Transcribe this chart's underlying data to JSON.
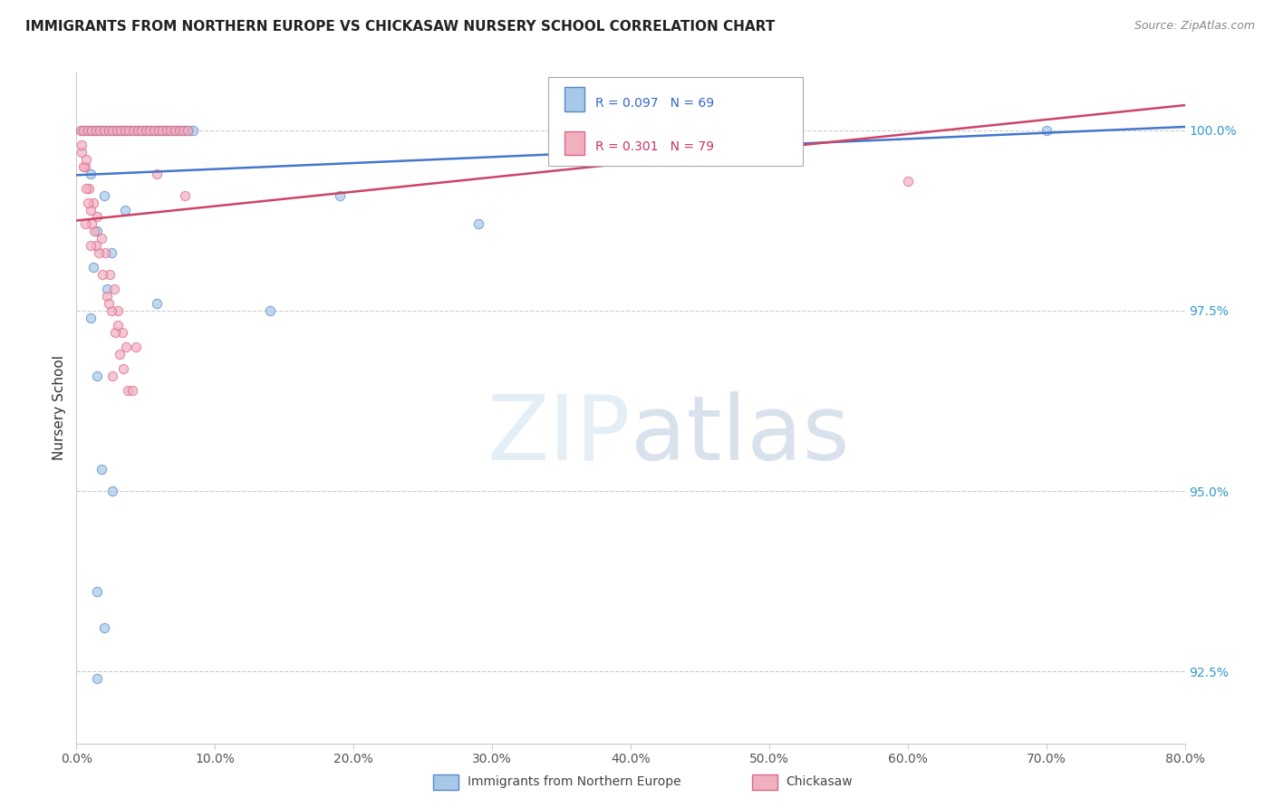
{
  "title": "IMMIGRANTS FROM NORTHERN EUROPE VS CHICKASAW NURSERY SCHOOL CORRELATION CHART",
  "source": "Source: ZipAtlas.com",
  "ylabel": "Nursery School",
  "legend_blue_label": "Immigrants from Northern Europe",
  "legend_pink_label": "Chickasaw",
  "watermark_zip": "ZIP",
  "watermark_atlas": "atlas",
  "blue_color": "#a8c8e8",
  "blue_edge_color": "#5588cc",
  "pink_color": "#f0b0c0",
  "pink_edge_color": "#dd6688",
  "blue_line_color": "#4477cc",
  "pink_line_color": "#cc4466",
  "blue_scatter": [
    [
      0.4,
      100.0
    ],
    [
      0.7,
      100.0
    ],
    [
      1.0,
      100.0
    ],
    [
      1.3,
      100.0
    ],
    [
      1.6,
      100.0
    ],
    [
      1.9,
      100.0
    ],
    [
      2.1,
      100.0
    ],
    [
      2.4,
      100.0
    ],
    [
      2.7,
      100.0
    ],
    [
      3.0,
      100.0
    ],
    [
      3.3,
      100.0
    ],
    [
      3.6,
      100.0
    ],
    [
      3.9,
      100.0
    ],
    [
      4.2,
      100.0
    ],
    [
      4.5,
      100.0
    ],
    [
      4.8,
      100.0
    ],
    [
      5.1,
      100.0
    ],
    [
      5.4,
      100.0
    ],
    [
      5.7,
      100.0
    ],
    [
      6.0,
      100.0
    ],
    [
      6.3,
      100.0
    ],
    [
      6.6,
      100.0
    ],
    [
      6.9,
      100.0
    ],
    [
      7.2,
      100.0
    ],
    [
      7.5,
      100.0
    ],
    [
      7.8,
      100.0
    ],
    [
      8.1,
      100.0
    ],
    [
      8.4,
      100.0
    ],
    [
      19.0,
      99.1
    ],
    [
      29.0,
      98.7
    ],
    [
      70.0,
      100.0
    ],
    [
      1.0,
      99.4
    ],
    [
      2.0,
      99.1
    ],
    [
      3.5,
      98.9
    ],
    [
      1.5,
      98.6
    ],
    [
      2.5,
      98.3
    ],
    [
      1.2,
      98.1
    ],
    [
      2.2,
      97.8
    ],
    [
      5.8,
      97.6
    ],
    [
      1.0,
      97.4
    ],
    [
      14.0,
      97.5
    ],
    [
      1.5,
      96.6
    ],
    [
      1.8,
      95.3
    ],
    [
      2.6,
      95.0
    ],
    [
      1.5,
      93.6
    ],
    [
      2.0,
      93.1
    ],
    [
      1.5,
      92.4
    ]
  ],
  "pink_scatter": [
    [
      0.3,
      100.0
    ],
    [
      0.5,
      100.0
    ],
    [
      0.8,
      100.0
    ],
    [
      1.1,
      100.0
    ],
    [
      1.4,
      100.0
    ],
    [
      1.7,
      100.0
    ],
    [
      2.0,
      100.0
    ],
    [
      2.3,
      100.0
    ],
    [
      2.6,
      100.0
    ],
    [
      2.9,
      100.0
    ],
    [
      3.2,
      100.0
    ],
    [
      3.5,
      100.0
    ],
    [
      3.8,
      100.0
    ],
    [
      4.1,
      100.0
    ],
    [
      4.4,
      100.0
    ],
    [
      4.7,
      100.0
    ],
    [
      5.0,
      100.0
    ],
    [
      5.3,
      100.0
    ],
    [
      5.6,
      100.0
    ],
    [
      5.9,
      100.0
    ],
    [
      6.2,
      100.0
    ],
    [
      6.5,
      100.0
    ],
    [
      6.8,
      100.0
    ],
    [
      7.1,
      100.0
    ],
    [
      7.4,
      100.0
    ],
    [
      7.7,
      100.0
    ],
    [
      8.0,
      100.0
    ],
    [
      0.4,
      99.7
    ],
    [
      0.6,
      99.5
    ],
    [
      0.9,
      99.2
    ],
    [
      1.2,
      99.0
    ],
    [
      1.5,
      98.8
    ],
    [
      1.8,
      98.5
    ],
    [
      2.1,
      98.3
    ],
    [
      2.4,
      98.0
    ],
    [
      2.7,
      97.8
    ],
    [
      3.0,
      97.5
    ],
    [
      3.3,
      97.2
    ],
    [
      3.6,
      97.0
    ],
    [
      0.5,
      99.5
    ],
    [
      0.7,
      99.2
    ],
    [
      1.0,
      98.9
    ],
    [
      1.3,
      98.6
    ],
    [
      1.6,
      98.3
    ],
    [
      1.9,
      98.0
    ],
    [
      2.2,
      97.7
    ],
    [
      2.5,
      97.5
    ],
    [
      2.8,
      97.2
    ],
    [
      3.1,
      96.9
    ],
    [
      3.4,
      96.7
    ],
    [
      3.7,
      96.4
    ],
    [
      0.8,
      99.0
    ],
    [
      1.1,
      98.7
    ],
    [
      1.4,
      98.4
    ],
    [
      0.6,
      98.7
    ],
    [
      1.0,
      98.4
    ],
    [
      2.3,
      97.6
    ],
    [
      3.0,
      97.3
    ],
    [
      4.3,
      97.0
    ],
    [
      5.8,
      99.4
    ],
    [
      7.8,
      99.1
    ],
    [
      2.6,
      96.6
    ],
    [
      4.0,
      96.4
    ],
    [
      0.4,
      99.8
    ],
    [
      0.7,
      99.6
    ],
    [
      60.0,
      99.3
    ]
  ],
  "xmin": 0.0,
  "xmax": 80.0,
  "ymin": 91.5,
  "ymax": 100.8,
  "blue_line_x": [
    0.0,
    80.0
  ],
  "blue_line_y": [
    99.38,
    100.05
  ],
  "pink_line_x": [
    0.0,
    80.0
  ],
  "pink_line_y": [
    98.75,
    100.35
  ],
  "ytick_vals": [
    100.0,
    97.5,
    95.0,
    92.5
  ],
  "ytick_labels": [
    "100.0%",
    "97.5%",
    "95.0%",
    "92.5%"
  ],
  "xtick_vals": [
    0.0,
    10.0,
    20.0,
    30.0,
    40.0,
    50.0,
    60.0,
    70.0,
    80.0
  ],
  "xtick_labels": [
    "0.0%",
    "10.0%",
    "20.0%",
    "30.0%",
    "40.0%",
    "50.0%",
    "60.0%",
    "70.0%",
    "80.0%"
  ]
}
